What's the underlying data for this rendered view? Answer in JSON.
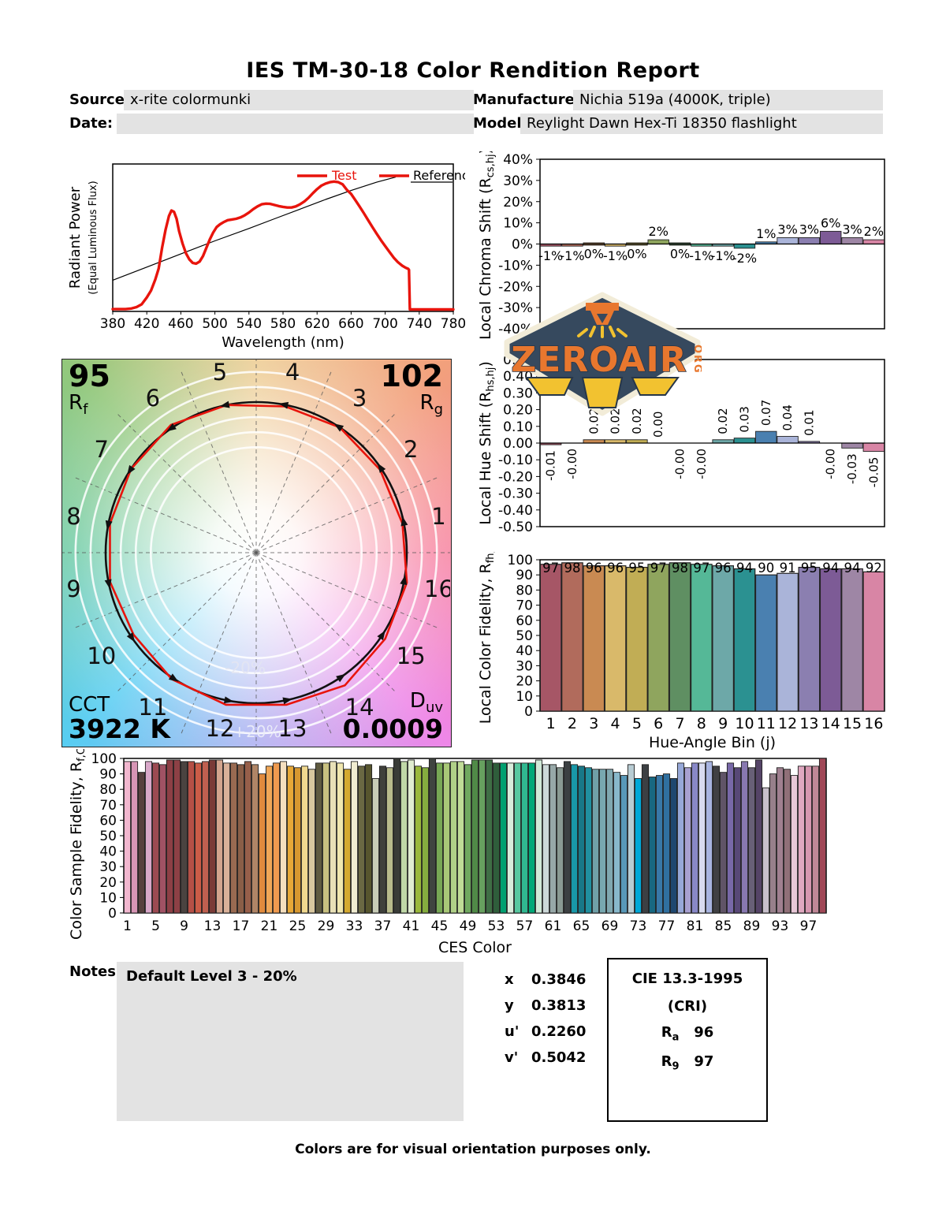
{
  "title": "IES TM-30-18 Color Rendition Report",
  "meta": {
    "source_label": "Source:",
    "source_value": "x-rite colormunki",
    "date_label": "Date:",
    "date_value": "",
    "manufacturer_label": "Manufacturer:",
    "manufacturer_value": "Nichia 519a (4000K, triple)",
    "model_label": "Model:",
    "model_value": "Reylight Dawn Hex-Ti 18350 flashlight"
  },
  "logo": {
    "name": "ZEROAIR",
    "org": "ORG"
  },
  "cvg_panel": {
    "rf_value": "95",
    "rf_main": "R",
    "rf_sub": "f",
    "rg_value": "102",
    "rg_main": "R",
    "rg_sub": "g",
    "cct_label": "CCT",
    "cct_value": "3922 K",
    "duv_main": "D",
    "duv_sub": "uv",
    "duv_value": "0.0009"
  },
  "notes": {
    "label": "Notes:",
    "text": "Default Level 3 - 20%"
  },
  "summary": {
    "rows": [
      {
        "sym": "x",
        "val": "0.3846"
      },
      {
        "sym": "y",
        "val": "0.3813"
      },
      {
        "sym": "u'",
        "val": "0.2260"
      },
      {
        "sym": "v'",
        "val": "0.5042"
      }
    ]
  },
  "cie": {
    "title": "CIE 13.3-1995",
    "subtitle": "(CRI)",
    "rows": [
      {
        "main": "R",
        "sub": "a",
        "val": "96"
      },
      {
        "main": "R",
        "sub": "9",
        "val": "97"
      }
    ]
  },
  "footer": "Colors are for visual orientation purposes only.",
  "hue_bin_colors": [
    "#a65666",
    "#b16b5c",
    "#c98a52",
    "#d9b96a",
    "#c1ad55",
    "#8fa55e",
    "#5f8f62",
    "#55b897",
    "#6da8a8",
    "#2b9191",
    "#4a80b0",
    "#aab4d9",
    "#8b7fb0",
    "#7d5b96",
    "#9e86a5",
    "#d885a5"
  ],
  "chart_data": [
    {
      "id": "spd",
      "type": "line",
      "xlabel": "Wavelength (nm)",
      "ylabel": "Radiant Power",
      "ylabel2": "(Equal Luminous Flux)",
      "xlim": [
        380,
        780
      ],
      "xtick_step": 40,
      "ylim": [
        0,
        1
      ],
      "legend": [
        "Test",
        "Reference"
      ],
      "legend_position": "top-right",
      "grid": false,
      "series": [
        {
          "name": "Test",
          "color": "#e8140c",
          "width": 3.4,
          "points": [
            [
              380,
              0.005
            ],
            [
              395,
              0.005
            ],
            [
              402,
              0.01
            ],
            [
              408,
              0.02
            ],
            [
              414,
              0.04
            ],
            [
              420,
              0.09
            ],
            [
              425,
              0.14
            ],
            [
              430,
              0.22
            ],
            [
              434,
              0.3
            ],
            [
              438,
              0.45
            ],
            [
              442,
              0.58
            ],
            [
              446,
              0.68
            ],
            [
              449,
              0.72
            ],
            [
              452,
              0.71
            ],
            [
              455,
              0.66
            ],
            [
              458,
              0.57
            ],
            [
              462,
              0.48
            ],
            [
              466,
              0.41
            ],
            [
              470,
              0.365
            ],
            [
              474,
              0.34
            ],
            [
              478,
              0.335
            ],
            [
              482,
              0.35
            ],
            [
              486,
              0.39
            ],
            [
              490,
              0.45
            ],
            [
              494,
              0.51
            ],
            [
              498,
              0.56
            ],
            [
              502,
              0.6
            ],
            [
              506,
              0.62
            ],
            [
              510,
              0.635
            ],
            [
              515,
              0.65
            ],
            [
              520,
              0.655
            ],
            [
              525,
              0.66
            ],
            [
              530,
              0.67
            ],
            [
              535,
              0.685
            ],
            [
              540,
              0.705
            ],
            [
              545,
              0.73
            ],
            [
              550,
              0.75
            ],
            [
              555,
              0.765
            ],
            [
              560,
              0.77
            ],
            [
              565,
              0.768
            ],
            [
              570,
              0.76
            ],
            [
              575,
              0.752
            ],
            [
              580,
              0.746
            ],
            [
              585,
              0.742
            ],
            [
              590,
              0.742
            ],
            [
              595,
              0.75
            ],
            [
              600,
              0.765
            ],
            [
              605,
              0.785
            ],
            [
              610,
              0.812
            ],
            [
              615,
              0.845
            ],
            [
              620,
              0.875
            ],
            [
              625,
              0.9
            ],
            [
              630,
              0.915
            ],
            [
              635,
              0.925
            ],
            [
              640,
              0.93
            ],
            [
              645,
              0.925
            ],
            [
              650,
              0.91
            ],
            [
              655,
              0.87
            ],
            [
              660,
              0.84
            ],
            [
              665,
              0.795
            ],
            [
              670,
              0.748
            ],
            [
              675,
              0.7
            ],
            [
              680,
              0.65
            ],
            [
              685,
              0.6
            ],
            [
              690,
              0.552
            ],
            [
              695,
              0.505
            ],
            [
              700,
              0.462
            ],
            [
              705,
              0.42
            ],
            [
              710,
              0.378
            ],
            [
              715,
              0.345
            ],
            [
              720,
              0.32
            ],
            [
              724,
              0.305
            ],
            [
              727,
              0.297
            ],
            [
              728,
              0.29
            ],
            [
              729,
              0.003
            ],
            [
              780,
              0.003
            ]
          ]
        },
        {
          "name": "Reference",
          "color": "#000000",
          "width": 1.2,
          "points": [
            [
              380,
              0.215
            ],
            [
              420,
              0.31
            ],
            [
              460,
              0.405
            ],
            [
              500,
              0.5
            ],
            [
              540,
              0.59
            ],
            [
              570,
              0.66
            ],
            [
              600,
              0.73
            ],
            [
              630,
              0.8
            ],
            [
              660,
              0.865
            ],
            [
              690,
              0.925
            ],
            [
              712,
              0.962
            ]
          ]
        }
      ]
    },
    {
      "id": "chroma",
      "type": "bar",
      "ylabel_main": "Local Chroma Shift (R",
      "ylabel_sub": "cs,hj",
      "ylabel_post": ")",
      "ylim": [
        -40,
        40
      ],
      "ytick_step": 10,
      "ytick_suffix": "%",
      "categories": [
        1,
        2,
        3,
        4,
        5,
        6,
        7,
        8,
        9,
        10,
        11,
        12,
        13,
        14,
        15,
        16
      ],
      "values": [
        -1,
        -1,
        0,
        -1,
        0,
        2,
        0,
        -1,
        -1,
        -2,
        1,
        3,
        3,
        6,
        3,
        2
      ],
      "labels": [
        "-1%",
        "-1%",
        "0%",
        "-1%",
        "0%",
        "2%",
        "0%",
        "-1%",
        "-1%",
        "-2%",
        "1%",
        "3%",
        "3%",
        "6%",
        "3%",
        "2%"
      ]
    },
    {
      "id": "hue",
      "type": "bar",
      "ylabel_main": "Local Hue Shift (R",
      "ylabel_sub": "hs,hj",
      "ylabel_post": ")",
      "ylim": [
        -0.5,
        0.5
      ],
      "ytick_step": 0.1,
      "categories": [
        1,
        2,
        3,
        4,
        5,
        6,
        7,
        8,
        9,
        10,
        11,
        12,
        13,
        14,
        15,
        16
      ],
      "values": [
        -0.01,
        0,
        0.02,
        0.02,
        0.02,
        0,
        0,
        0,
        0.02,
        0.03,
        0.07,
        0.04,
        0.01,
        0,
        -0.03,
        -0.05
      ],
      "labels": [
        "-0.01",
        "-0.00",
        "0.02",
        "0.02",
        "0.02",
        "0.00",
        "-0.00",
        "-0.00",
        "0.02",
        "0.03",
        "0.07",
        "0.04",
        "0.01",
        "-0.00",
        "-0.03",
        "-0.05"
      ]
    },
    {
      "id": "fid",
      "type": "bar",
      "ylabel_main": "Local Color Fidelity, R",
      "ylabel_sub": "fh,i",
      "ylabel_post": "",
      "xlabel": "Hue-Angle Bin (j)",
      "ylim": [
        0,
        100
      ],
      "ytick_step": 10,
      "categories": [
        1,
        2,
        3,
        4,
        5,
        6,
        7,
        8,
        9,
        10,
        11,
        12,
        13,
        14,
        15,
        16
      ],
      "values": [
        97,
        98,
        96,
        96,
        95,
        97,
        98,
        97,
        96,
        94,
        90,
        91,
        95,
        94,
        94,
        92
      ]
    },
    {
      "id": "ces",
      "type": "bar",
      "ylabel_main": "Color Sample Fidelity, R",
      "ylabel_sub": "f,CESi",
      "ylabel_post": "",
      "xlabel": "CES Color",
      "ylim": [
        0,
        100
      ],
      "ytick_step": 10,
      "xticks": [
        1,
        5,
        9,
        13,
        17,
        21,
        25,
        29,
        33,
        37,
        41,
        45,
        49,
        53,
        57,
        61,
        65,
        69,
        73,
        77,
        81,
        85,
        89,
        93,
        97
      ],
      "values": [
        98,
        98,
        91,
        98,
        97,
        96,
        99,
        99,
        98,
        98,
        97,
        98,
        99,
        99,
        97,
        97,
        96,
        98,
        96,
        90,
        95,
        97,
        98,
        95,
        94,
        95,
        93,
        97,
        97,
        98,
        97,
        93,
        98,
        95,
        96,
        87,
        95,
        94,
        100,
        98,
        99,
        95,
        94,
        100,
        97,
        97,
        98,
        98,
        96,
        99,
        99,
        99,
        97,
        97,
        97,
        97,
        97,
        97,
        99,
        96,
        96,
        94,
        98,
        96,
        95,
        94,
        93,
        93,
        93,
        91,
        89,
        96,
        87,
        96,
        88,
        89,
        90,
        87,
        97,
        94,
        97,
        97,
        98,
        95,
        91,
        97,
        94,
        98,
        94,
        99,
        81,
        90,
        94,
        93,
        89,
        95,
        95,
        95,
        100
      ],
      "colors": [
        "#f2b7cf",
        "#d795b5",
        "#57403e",
        "#d9a8c9",
        "#9c4a52",
        "#a05264",
        "#8d3f45",
        "#8d4045",
        "#4a4340",
        "#b55046",
        "#cb5c47",
        "#bf6050",
        "#7a3b37",
        "#d3a58e",
        "#d9b199",
        "#996a51",
        "#8a5e47",
        "#975f4a",
        "#b08566",
        "#e08a3d",
        "#f0a757",
        "#ef9a4f",
        "#f5dfbf",
        "#e7a837",
        "#d79830",
        "#f0d88f",
        "#d8c79f",
        "#5f5a40",
        "#c8c080",
        "#e8e0b7",
        "#f0e7af",
        "#d4a930",
        "#f0ecd0",
        "#6a6843",
        "#57552e",
        "#c8ccb7",
        "#3f403b",
        "#b8bb8b",
        "#3a3c37",
        "#c0d8a7",
        "#e0ecd0",
        "#9ab83b",
        "#85ad3f",
        "#404440",
        "#78a855",
        "#a8c877",
        "#b0d088",
        "#c0dc97",
        "#70a85f",
        "#508a47",
        "#67a05f",
        "#3f6e45",
        "#2f5e3b",
        "#00a070",
        "#d8ecdb",
        "#58c8a0",
        "#30b890",
        "#00a877",
        "#d0e8d7",
        "#ccd8d8",
        "#97a8a8",
        "#8a9a93",
        "#3c4042",
        "#1898a8",
        "#187888",
        "#2090a0",
        "#70a0a8",
        "#78a8b0",
        "#80a8b0",
        "#88b8cb",
        "#5898b8",
        "#b8ccd3",
        "#00a8d8",
        "#3c4043",
        "#186881",
        "#3878a8",
        "#3070a0",
        "#1f4870",
        "#97a8d8",
        "#a8a0d0",
        "#8888c7",
        "#d8dbef",
        "#a8b4e0",
        "#404043",
        "#605467",
        "#7868a8",
        "#584877",
        "#8878b0",
        "#686077",
        "#554467",
        "#c8c0cb",
        "#97808b",
        "#a08090",
        "#907078",
        "#e8c8d7",
        "#e0a8c0",
        "#d797b0",
        "#c08897",
        "#a04857"
      ]
    },
    {
      "id": "cvg",
      "type": "color-vector-graphic",
      "bins": [
        1,
        2,
        3,
        4,
        5,
        6,
        7,
        8,
        9,
        10,
        11,
        12,
        13,
        14,
        15,
        16
      ],
      "chroma_shift_pct": [
        -1,
        -1,
        0,
        -1,
        0,
        2,
        0,
        -1,
        -1,
        -2,
        1,
        3,
        3,
        6,
        3,
        2
      ],
      "rf": 95,
      "rg": 102,
      "cct": "3922 K",
      "duv": "0.0009",
      "ring_labels": [
        "-20%",
        "+20%"
      ]
    }
  ]
}
